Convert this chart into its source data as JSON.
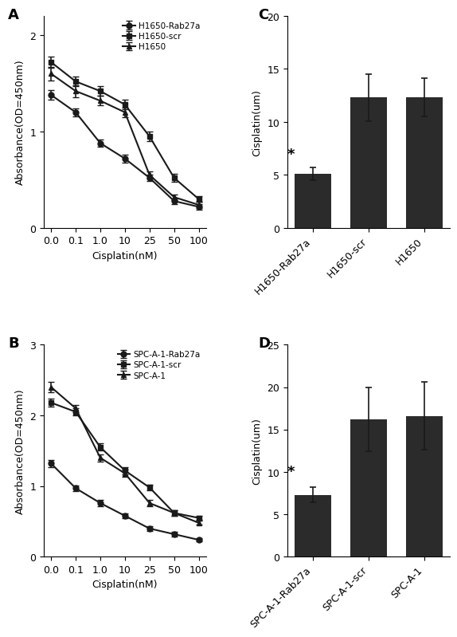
{
  "panel_A": {
    "x_labels": [
      "0.0",
      "0.1",
      "1.0",
      "10",
      "25",
      "50",
      "100"
    ],
    "x_vals": [
      0,
      1,
      2,
      3,
      4,
      5,
      6
    ],
    "rab27a_y": [
      1.38,
      1.2,
      0.88,
      0.72,
      0.52,
      0.28,
      0.22
    ],
    "rab27a_err": [
      0.05,
      0.04,
      0.04,
      0.04,
      0.03,
      0.03,
      0.03
    ],
    "scr_y": [
      1.72,
      1.52,
      1.42,
      1.28,
      0.95,
      0.52,
      0.3
    ],
    "scr_err": [
      0.06,
      0.05,
      0.05,
      0.05,
      0.05,
      0.04,
      0.03
    ],
    "h1650_y": [
      1.6,
      1.42,
      1.32,
      1.2,
      0.55,
      0.32,
      0.24
    ],
    "h1650_err": [
      0.07,
      0.06,
      0.05,
      0.05,
      0.04,
      0.03,
      0.03
    ],
    "ylabel": "Absorbance(OD=450nm)",
    "xlabel": "Cisplatin(nM)",
    "ylim": [
      0,
      2.2
    ],
    "yticks": [
      0,
      1,
      2
    ],
    "legend": [
      "H1650-Rab27a",
      "H1650-scr",
      "H1650"
    ],
    "panel_label": "A"
  },
  "panel_B": {
    "x_labels": [
      "0.0",
      "0.1",
      "1.0",
      "10",
      "25",
      "50",
      "100"
    ],
    "x_vals": [
      0,
      1,
      2,
      3,
      4,
      5,
      6
    ],
    "rab27a_y": [
      1.32,
      0.97,
      0.76,
      0.58,
      0.4,
      0.32,
      0.24
    ],
    "rab27a_err": [
      0.05,
      0.04,
      0.04,
      0.03,
      0.03,
      0.03,
      0.02
    ],
    "scr_y": [
      2.18,
      2.05,
      1.55,
      1.22,
      0.98,
      0.62,
      0.55
    ],
    "scr_err": [
      0.06,
      0.05,
      0.05,
      0.05,
      0.04,
      0.04,
      0.03
    ],
    "spc_y": [
      2.4,
      2.1,
      1.4,
      1.18,
      0.76,
      0.62,
      0.48
    ],
    "spc_err": [
      0.07,
      0.05,
      0.05,
      0.05,
      0.04,
      0.04,
      0.03
    ],
    "ylabel": "Absorbance(OD=450nm)",
    "xlabel": "Cisplatin(nM)",
    "ylim": [
      0,
      3.0
    ],
    "yticks": [
      0,
      1,
      2,
      3
    ],
    "legend": [
      "SPC-A-1-Rab27a",
      "SPC-A-1-scr",
      "SPC-A-1"
    ],
    "panel_label": "B"
  },
  "panel_C": {
    "categories": [
      "H1650-Rab27a",
      "H1650-scr",
      "H1650"
    ],
    "values": [
      5.1,
      12.3,
      12.3
    ],
    "errors": [
      0.6,
      2.2,
      1.8
    ],
    "ylabel": "Cisplatin(um)",
    "ylim": [
      0,
      20
    ],
    "yticks": [
      0,
      5,
      10,
      15,
      20
    ],
    "bar_color": "#2b2b2b",
    "panel_label": "C"
  },
  "panel_D": {
    "categories": [
      "SPC-A-1-Rab27a",
      "SPC-A-1-scr",
      "SPC-A-1"
    ],
    "values": [
      7.3,
      16.2,
      16.6
    ],
    "errors": [
      0.9,
      3.8,
      4.0
    ],
    "ylabel": "Cisplatin(um)",
    "ylim": [
      0,
      25
    ],
    "yticks": [
      0,
      5,
      10,
      15,
      20,
      25
    ],
    "bar_color": "#2b2b2b",
    "panel_label": "D"
  },
  "line_color": "#1a1a1a",
  "marker_circle": "o",
  "marker_square": "s",
  "marker_triangle": "^",
  "markersize": 5,
  "linewidth": 1.5,
  "capsize": 3,
  "elinewidth": 1.2,
  "font_size": 9,
  "label_font_size": 9,
  "panel_font_size": 13,
  "bar_width": 0.65
}
